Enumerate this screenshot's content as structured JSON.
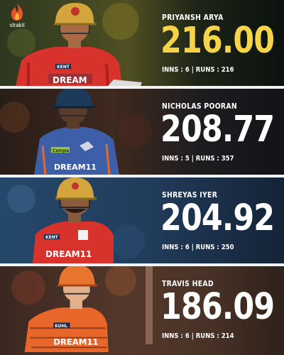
{
  "brand": {
    "name": "vtrakit",
    "icon": "flame-logo-icon"
  },
  "players": [
    {
      "name": "PRIYANSH ARYA",
      "strike_rate": "216.00",
      "meta": "INNS : 6 | RUNS : 216",
      "highlight": true,
      "jersey": {
        "sponsor_top": "KENT",
        "sponsor_main": "DREAM"
      }
    },
    {
      "name": "NICHOLAS POORAN",
      "strike_rate": "208.77",
      "meta": "INNS : 5 | RUNS : 357",
      "highlight": false,
      "jersey": {
        "sponsor_top": "Campa",
        "sponsor_main": "DREAM11"
      }
    },
    {
      "name": "SHREYAS IYER",
      "strike_rate": "204.92",
      "meta": "INNS : 6 | RUNS : 250",
      "highlight": false,
      "jersey": {
        "sponsor_top": "KENT",
        "sponsor_main": "DREAM11"
      }
    },
    {
      "name": "TRAVIS HEAD",
      "strike_rate": "186.09",
      "meta": "INNS : 6 | RUNS : 214",
      "highlight": false,
      "jersey": {
        "sponsor_top": "KUHL",
        "sponsor_main": "DREAM11"
      }
    }
  ],
  "colors": {
    "highlight": "#f6d44a",
    "pbks_red": "#d7322b",
    "lsg_blue": "#3c5fa8",
    "srh_orange": "#e9662a",
    "helmet_gold": "#d3a53c",
    "helmet_navy": "#1e3a5b",
    "helmet_orange": "#e8742e"
  }
}
